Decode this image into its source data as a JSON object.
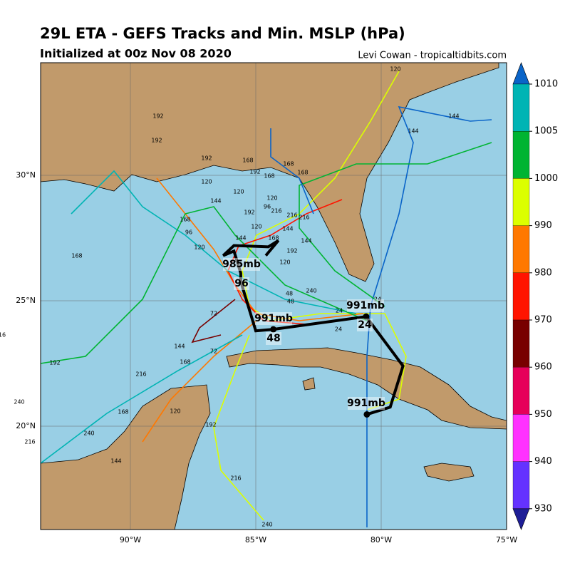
{
  "header": {
    "title": "29L ETA - GEFS Tracks and Min. MSLP (hPa)",
    "subtitle": "Initialized at 00z Nov 08 2020",
    "credit": "Levi Cowan - tropicaltidbits.com"
  },
  "axes": {
    "lon_ticks": [
      {
        "value": -90,
        "label": "90°W"
      },
      {
        "value": -85,
        "label": "85°W"
      },
      {
        "value": -80,
        "label": "80°W"
      },
      {
        "value": -75,
        "label": "75°W"
      }
    ],
    "lat_ticks": [
      {
        "value": 30,
        "label": "30°N"
      },
      {
        "value": 25,
        "label": "25°N"
      },
      {
        "value": 20,
        "label": "20°N"
      }
    ]
  },
  "colorbar": {
    "ticks": [
      1010,
      1005,
      1000,
      990,
      980,
      970,
      960,
      950,
      940,
      930
    ],
    "colors": [
      "#0a64c8",
      "#00b4b4",
      "#00b432",
      "#dcff00",
      "#ff7800",
      "#ff1400",
      "#780000",
      "#e6005a",
      "#ff32ff",
      "#6432ff",
      "#1e1e96"
    ]
  },
  "mean_track": {
    "lon": [
      -80.57,
      -79.64,
      -79.13,
      -80.6,
      -84.3,
      -85.0,
      -85.6,
      -85.6,
      -85.87,
      -86.3,
      -85.87,
      -84.5,
      -84.1,
      -84.6
    ],
    "lat": [
      20.47,
      20.76,
      22.4,
      24.37,
      23.86,
      23.8,
      25.77,
      26.1,
      26.98,
      26.8,
      27.2,
      27.15,
      27.4,
      26.8
    ],
    "labels": [
      "991mb",
      "991mb",
      "24",
      "991mb",
      "48",
      "985mb",
      "96"
    ]
  },
  "member_labels": [
    "192",
    "192",
    "168",
    "168",
    "168",
    "120",
    "120",
    "120",
    "144",
    "144",
    "144",
    "192",
    "192",
    "96",
    "96",
    "216",
    "216",
    "120",
    "168",
    "192",
    "120",
    "144",
    "168",
    "120",
    "48",
    "48",
    "24",
    "24",
    "24",
    "240",
    "72",
    "72",
    "144",
    "168",
    "216",
    "120",
    "192",
    "216",
    "240",
    "240",
    "144",
    "168",
    "16",
    "240",
    "216",
    "168",
    "192",
    "144",
    "192",
    "120",
    "168",
    "144",
    "216"
  ]
}
